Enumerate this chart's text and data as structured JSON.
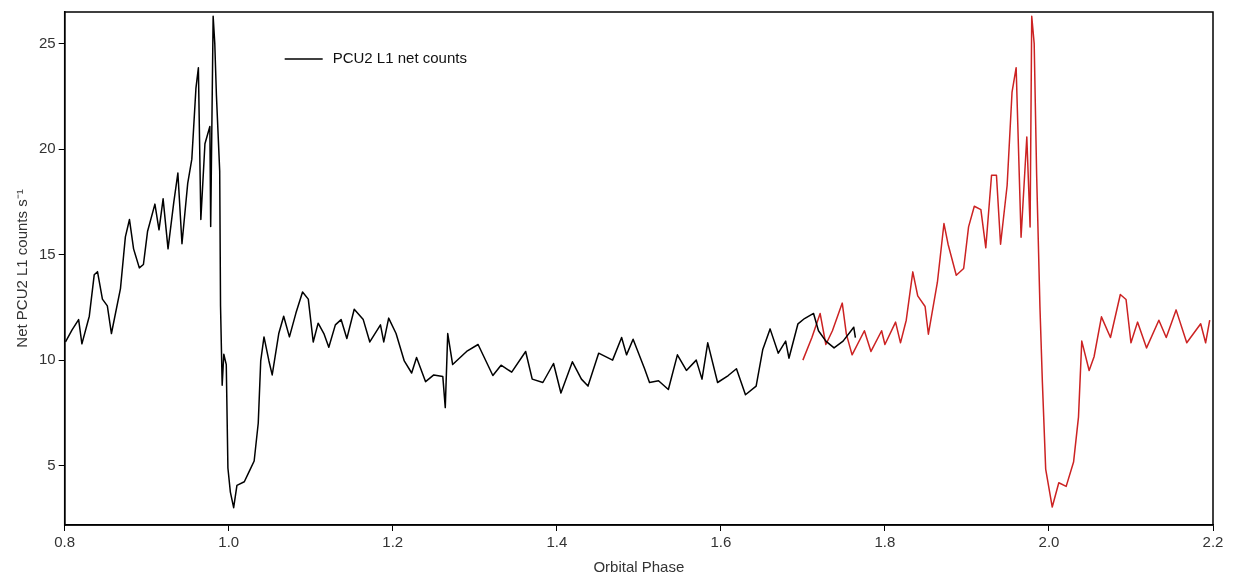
{
  "chart_data": {
    "type": "line",
    "xlabel": "Orbital Phase",
    "ylabel": "Net PCU2 L1 counts s⁻¹",
    "xlim": [
      0.8,
      2.2
    ],
    "xticks": [
      0.8,
      {
        "value": 1.0,
        "label": "1.0"
      },
      1.2,
      1.4,
      1.6,
      1.8,
      {
        "value": 2.0,
        "label": "2.0"
      },
      2.2
    ],
    "ylim": [
      2.2,
      26.5
    ],
    "yticks": [
      5,
      10,
      15,
      20,
      25
    ],
    "grid": false,
    "legend": "top left",
    "series": [
      {
        "name": "PCU2 L1 net counts",
        "color": "#000000",
        "x": [
          0.801,
          0.809,
          0.817,
          0.821,
          0.83,
          0.836,
          0.84,
          0.846,
          0.852,
          0.857,
          0.868,
          0.874,
          0.879,
          0.884,
          0.891,
          0.896,
          0.901,
          0.91,
          0.915,
          0.92,
          0.926,
          0.933,
          0.938,
          0.943,
          0.95,
          0.955,
          0.96,
          0.963,
          0.966,
          0.971,
          0.977,
          0.978,
          0.981,
          0.983,
          0.985,
          0.989,
          0.99,
          0.992,
          0.994,
          0.997,
          0.999,
          1.002,
          1.006,
          1.01,
          1.019,
          1.025,
          1.031,
          1.036,
          1.039,
          1.043,
          1.049,
          1.053,
          1.061,
          1.067,
          1.074,
          1.082,
          1.09,
          1.097,
          1.103,
          1.109,
          1.116,
          1.122,
          1.13,
          1.137,
          1.144,
          1.153,
          1.164,
          1.172,
          1.185,
          1.189,
          1.195,
          1.204,
          1.214,
          1.223,
          1.229,
          1.24,
          1.25,
          1.261,
          1.264,
          1.267,
          1.273,
          1.29,
          1.304,
          1.322,
          1.332,
          1.345,
          1.362,
          1.37,
          1.383,
          1.396,
          1.405,
          1.419,
          1.43,
          1.438,
          1.451,
          1.468,
          1.479,
          1.485,
          1.493,
          1.507,
          1.513,
          1.524,
          1.536,
          1.547,
          1.558,
          1.57,
          1.577,
          1.584,
          1.596,
          1.609,
          1.619,
          1.63,
          1.643,
          1.651,
          1.66,
          1.67,
          1.679,
          1.683,
          1.694,
          1.702,
          1.713,
          1.719,
          1.728,
          1.738,
          1.749,
          1.762,
          1.764
        ],
        "values": [
          10.87,
          11.44,
          11.93,
          10.78,
          12.09,
          14.05,
          14.2,
          12.9,
          12.58,
          11.27,
          13.4,
          15.85,
          16.67,
          15.28,
          14.38,
          14.54,
          16.1,
          17.4,
          16.18,
          17.65,
          15.28,
          17.48,
          18.87,
          15.52,
          18.38,
          19.53,
          22.88,
          23.86,
          16.67,
          20.26,
          21.08,
          16.34,
          26.3,
          25.0,
          22.55,
          18.95,
          12.58,
          8.82,
          10.29,
          9.8,
          4.9,
          3.76,
          3.02,
          4.08,
          4.25,
          4.74,
          5.23,
          7.03,
          9.97,
          11.11,
          9.97,
          9.31,
          11.27,
          12.09,
          11.11,
          12.25,
          13.24,
          12.9,
          10.87,
          11.76,
          11.27,
          10.62,
          11.68,
          11.93,
          11.03,
          12.42,
          11.93,
          10.87,
          11.68,
          10.87,
          12.0,
          11.27,
          9.97,
          9.4,
          10.13,
          8.99,
          9.31,
          9.23,
          7.76,
          11.27,
          9.8,
          10.42,
          10.75,
          9.28,
          9.77,
          9.44,
          10.42,
          9.11,
          8.95,
          9.85,
          8.45,
          9.93,
          9.11,
          8.78,
          10.34,
          10.01,
          11.08,
          10.26,
          11.0,
          9.6,
          8.95,
          9.03,
          8.62,
          10.26,
          9.52,
          10.01,
          9.11,
          10.83,
          8.95,
          9.28,
          9.6,
          8.37,
          8.78,
          10.5,
          11.49,
          10.34,
          10.91,
          10.1,
          11.73,
          11.98,
          12.22,
          11.4,
          10.91,
          10.59,
          10.91,
          11.57,
          11.08
        ]
      },
      {
        "color": "#cc2222",
        "x": [
          1.7,
          1.711,
          1.721,
          1.728,
          1.736,
          1.748,
          1.753,
          1.76,
          1.775,
          1.783,
          1.796,
          1.8,
          1.813,
          1.819,
          1.826,
          1.834,
          1.84,
          1.849,
          1.853,
          1.864,
          1.872,
          1.877,
          1.887,
          1.896,
          1.902,
          1.909,
          1.917,
          1.923,
          1.93,
          1.936,
          1.941,
          1.949,
          1.955,
          1.96,
          1.966,
          1.973,
          1.977,
          1.979,
          1.982,
          1.985,
          1.989,
          1.992,
          1.996,
          2.004,
          2.012,
          2.021,
          2.03,
          2.036,
          2.04,
          2.049,
          2.055,
          2.064,
          2.075,
          2.087,
          2.094,
          2.1,
          2.108,
          2.119,
          2.134,
          2.143,
          2.155,
          2.168,
          2.185,
          2.191,
          2.196
        ],
        "values": [
          10.01,
          11.08,
          12.22,
          10.75,
          11.4,
          12.71,
          11.24,
          10.26,
          11.4,
          10.42,
          11.4,
          10.75,
          11.81,
          10.83,
          11.9,
          14.19,
          13.05,
          12.55,
          11.24,
          13.7,
          16.48,
          15.5,
          14.03,
          14.35,
          16.32,
          17.3,
          17.14,
          15.33,
          18.77,
          18.77,
          15.5,
          18.28,
          22.71,
          23.86,
          15.83,
          20.58,
          16.32,
          26.3,
          25.0,
          18.77,
          12.55,
          8.95,
          4.85,
          3.05,
          4.2,
          4.03,
          5.18,
          7.31,
          10.91,
          9.52,
          10.17,
          12.06,
          11.08,
          13.12,
          12.88,
          10.83,
          11.81,
          10.59,
          11.9,
          11.08,
          12.39,
          10.83,
          11.73,
          10.83,
          11.9
        ]
      }
    ]
  }
}
